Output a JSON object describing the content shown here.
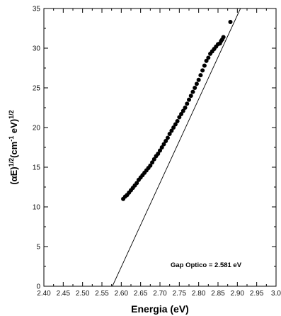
{
  "chart_data": {
    "type": "scatter",
    "title": "",
    "xlabel": "Energia (eV)",
    "ylabel": {
      "base": "(αE)",
      "base_sup": "1/2",
      "unit_open": "(cm",
      "unit_sup": "-1",
      "unit_close": " eV)",
      "tail_sup": "1/2"
    },
    "xlim": [
      2.4,
      3.0
    ],
    "ylim": [
      0,
      35
    ],
    "xticks": [
      "2.40",
      "2.45",
      "2.50",
      "2.55",
      "2.60",
      "2.65",
      "2.70",
      "2.75",
      "2.80",
      "2.85",
      "2.90",
      "2.95",
      "3.0"
    ],
    "yticks": [
      "0",
      "5",
      "10",
      "15",
      "20",
      "25",
      "30",
      "35"
    ],
    "grid": false,
    "legend": "none",
    "series": [
      {
        "x": [
          2.605,
          2.61,
          2.615,
          2.62,
          2.625,
          2.63,
          2.635,
          2.64,
          2.645,
          2.65,
          2.655,
          2.66,
          2.665,
          2.67,
          2.675,
          2.68,
          2.685,
          2.69,
          2.695,
          2.7,
          2.705,
          2.71,
          2.715,
          2.72,
          2.725,
          2.73,
          2.735,
          2.74,
          2.745,
          2.75,
          2.755,
          2.76,
          2.765,
          2.77,
          2.775,
          2.78,
          2.785,
          2.79,
          2.795,
          2.8,
          2.805,
          2.81,
          2.815,
          2.82,
          2.825,
          2.83,
          2.835,
          2.84,
          2.845,
          2.85,
          2.855,
          2.858,
          2.861,
          2.864,
          2.882
        ],
        "y": [
          11.0,
          11.3,
          11.5,
          11.8,
          12.1,
          12.4,
          12.7,
          13.0,
          13.4,
          13.7,
          14.0,
          14.3,
          14.6,
          14.9,
          15.2,
          15.6,
          16.0,
          16.4,
          16.7,
          17.1,
          17.5,
          17.9,
          18.3,
          18.7,
          19.2,
          19.6,
          20.0,
          20.4,
          20.8,
          21.3,
          21.7,
          22.1,
          22.5,
          23.0,
          23.5,
          24.0,
          24.5,
          25.0,
          25.5,
          26.0,
          26.6,
          27.2,
          27.8,
          28.4,
          28.8,
          29.3,
          29.6,
          29.9,
          30.2,
          30.5,
          30.6,
          30.9,
          31.1,
          31.4,
          33.3
        ]
      }
    ],
    "fit_line": {
      "x": [
        2.577,
        2.908
      ],
      "y": [
        0,
        35
      ]
    },
    "annotation": "Gap Optico = 2.581 eV",
    "colors": {
      "markers": "#000000",
      "line": "#000000",
      "axes": "#000000"
    }
  }
}
